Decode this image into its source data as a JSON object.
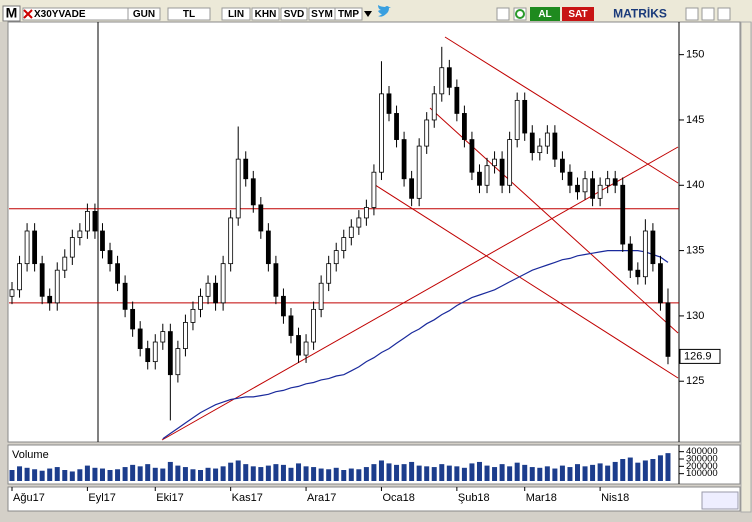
{
  "toolbar": {
    "menu": "M",
    "symbol": "X30YVADE",
    "buttons": [
      "GUN",
      "TL",
      "LIN",
      "KHN",
      "SVD",
      "SYM",
      "TMP"
    ],
    "buy": "AL",
    "sell": "SAT",
    "logo": "MATRİKS"
  },
  "chart_data": {
    "type": "candlestick",
    "categories": [
      "Ağu17",
      null,
      null,
      null,
      null,
      null,
      null,
      null,
      null,
      null,
      "Eyl17",
      null,
      null,
      null,
      null,
      null,
      null,
      null,
      null,
      "Eki17",
      null,
      null,
      null,
      null,
      null,
      null,
      null,
      null,
      null,
      "Kas17",
      null,
      null,
      null,
      null,
      null,
      null,
      null,
      null,
      null,
      "Ara17",
      null,
      null,
      null,
      null,
      null,
      null,
      null,
      null,
      null,
      "Oca18",
      null,
      null,
      null,
      null,
      null,
      null,
      null,
      null,
      null,
      "Şub18",
      null,
      null,
      null,
      null,
      null,
      null,
      null,
      null,
      "Mar18",
      null,
      null,
      null,
      null,
      null,
      null,
      null,
      null,
      null,
      "Nis18",
      null,
      null,
      null,
      null,
      null,
      null,
      null,
      null,
      null
    ],
    "open": [
      131.5,
      132,
      134,
      136.5,
      134,
      131.5,
      131,
      133.5,
      134.5,
      136,
      136.5,
      138,
      136.5,
      135,
      134,
      132.5,
      130.5,
      129,
      127.5,
      126.5,
      128,
      128.8,
      125.5,
      127.5,
      129.5,
      130.5,
      131.5,
      132.5,
      131,
      134,
      137.5,
      142,
      140.5,
      138.5,
      136.5,
      134,
      131.5,
      130,
      128.5,
      127,
      128,
      130.5,
      132.5,
      134,
      135,
      136,
      136.8,
      137.5,
      138.3,
      141,
      147,
      145.5,
      143.5,
      140.5,
      139,
      143,
      145,
      147,
      149,
      147.5,
      145.5,
      143.5,
      141,
      140,
      141.5,
      142,
      140,
      143.5,
      146.5,
      144,
      142.5,
      143,
      144,
      142,
      141,
      140,
      139.5,
      140.5,
      139,
      140,
      140.5,
      140,
      135.5,
      133.5,
      133,
      136.5,
      134,
      131
    ],
    "high": [
      132.6,
      134.6,
      137.1,
      137.1,
      134.6,
      132.1,
      134.1,
      135.1,
      136.6,
      137.1,
      138.6,
      138.6,
      137.1,
      135.6,
      134.6,
      133.1,
      131.1,
      129.6,
      128.1,
      128.6,
      129.4,
      129.4,
      128.1,
      130.1,
      131.1,
      132.1,
      133.1,
      133.1,
      134.6,
      138.1,
      144.5,
      142.6,
      141.1,
      139.1,
      137.1,
      134.6,
      132.1,
      130.6,
      129.1,
      128.6,
      131.1,
      133.1,
      134.6,
      135.6,
      136.6,
      137.4,
      138.1,
      138.9,
      141.6,
      149.5,
      147.6,
      146.1,
      144.1,
      141.1,
      143.6,
      145.6,
      147.6,
      150.6,
      149.6,
      148.1,
      146.1,
      144.1,
      141.6,
      142.1,
      142.6,
      142.6,
      144.1,
      147.1,
      147.1,
      144.6,
      143.6,
      144.6,
      144.6,
      142.6,
      141.6,
      140.6,
      141.1,
      141.1,
      140.6,
      141.1,
      141.1,
      140.6,
      136.1,
      134.1,
      137.4,
      137.1,
      134.6,
      132.1
    ],
    "low": [
      130.9,
      131.4,
      133.4,
      133.4,
      130.9,
      130.4,
      130.4,
      132.9,
      133.9,
      135.4,
      135.9,
      135.9,
      134.4,
      133.4,
      131.9,
      129.9,
      128.4,
      126.9,
      125.9,
      125.9,
      127.4,
      122,
      124.9,
      126.9,
      128.9,
      129.9,
      130.9,
      130.4,
      130.4,
      133.4,
      136.9,
      139.9,
      137.9,
      135.9,
      133.4,
      130.9,
      129.4,
      127.9,
      126.4,
      126.4,
      127.4,
      129.9,
      131.9,
      133.4,
      134.4,
      135.4,
      136.2,
      136.9,
      137.7,
      140.4,
      144.9,
      142.9,
      139.9,
      138.4,
      138.4,
      142.4,
      144.4,
      146.4,
      146.9,
      144.9,
      142.9,
      140.4,
      139.4,
      139.4,
      140.9,
      139.4,
      139.4,
      142.9,
      143.4,
      141.9,
      141.9,
      142.4,
      141.4,
      140.4,
      139.4,
      138.9,
      138.9,
      138.4,
      138.4,
      139.4,
      139.4,
      134.9,
      132.9,
      132.4,
      132.4,
      133.4,
      130.4,
      126.3
    ],
    "close": [
      132,
      134,
      136.5,
      134,
      131.5,
      131,
      133.5,
      134.5,
      136,
      136.5,
      138,
      136.5,
      135,
      134,
      132.5,
      130.5,
      129,
      127.5,
      126.5,
      128,
      128.8,
      125.5,
      127.5,
      129.5,
      130.5,
      131.5,
      132.5,
      131,
      134,
      137.5,
      142,
      140.5,
      138.5,
      136.5,
      134,
      131.5,
      130,
      128.5,
      127,
      128,
      130.5,
      132.5,
      134,
      135,
      136,
      136.8,
      137.5,
      138.3,
      141,
      147,
      145.5,
      143.5,
      140.5,
      139,
      143,
      145,
      147,
      149,
      147.5,
      145.5,
      143.5,
      141,
      140,
      141.5,
      142,
      140,
      143.5,
      146.5,
      144,
      142.5,
      143,
      144,
      142,
      141,
      140,
      139.5,
      140.5,
      139,
      140,
      140.5,
      140,
      135.5,
      133.5,
      133,
      136.5,
      134,
      131,
      126.9
    ],
    "moving_average": {
      "color": "#1a2a9c",
      "values": [
        null,
        null,
        null,
        null,
        null,
        null,
        null,
        null,
        null,
        null,
        null,
        null,
        null,
        null,
        null,
        null,
        null,
        null,
        null,
        null,
        120.6,
        121,
        121.4,
        121.8,
        122.2,
        122.6,
        122.9,
        123.2,
        123.4,
        123.6,
        123.7,
        123.8,
        123.8,
        123.9,
        124,
        124.2,
        124.3,
        124.5,
        124.6,
        124.8,
        124.9,
        125.1,
        125.2,
        125.4,
        125.5,
        125.8,
        126.1,
        126.5,
        126.8,
        127.2,
        127.5,
        127.9,
        128.3,
        128.7,
        129,
        129.4,
        129.7,
        130.1,
        130.4,
        130.8,
        131.1,
        131.4,
        131.6,
        131.8,
        132,
        132.3,
        132.6,
        132.9,
        133.2,
        133.5,
        133.7,
        133.9,
        134.1,
        134.3,
        134.4,
        134.6,
        134.7,
        134.8,
        134.9,
        135,
        135,
        135,
        135,
        135,
        134.9,
        134.7,
        134.5,
        134.1
      ]
    },
    "levels": [
      138.2,
      131
    ],
    "level_color": "#c00000",
    "last_price": 126.9,
    "ylim": [
      120.5,
      152.5
    ],
    "yticks": [
      125,
      130,
      135,
      140,
      145,
      150
    ],
    "volume": {
      "label": "Volume",
      "color": "#1c3d8c",
      "ylim": [
        0,
        450000
      ],
      "yticks": [
        100000,
        200000,
        300000,
        400000
      ],
      "values": [
        150000,
        200000,
        180000,
        160000,
        140000,
        170000,
        190000,
        150000,
        130000,
        160000,
        210000,
        180000,
        170000,
        150000,
        160000,
        190000,
        220000,
        200000,
        230000,
        180000,
        170000,
        260000,
        210000,
        190000,
        160000,
        150000,
        180000,
        170000,
        200000,
        250000,
        280000,
        230000,
        200000,
        190000,
        210000,
        230000,
        220000,
        180000,
        240000,
        200000,
        190000,
        170000,
        160000,
        180000,
        150000,
        170000,
        160000,
        190000,
        230000,
        280000,
        240000,
        220000,
        230000,
        260000,
        210000,
        200000,
        190000,
        230000,
        210000,
        200000,
        180000,
        240000,
        260000,
        210000,
        190000,
        230000,
        200000,
        250000,
        220000,
        190000,
        180000,
        200000,
        170000,
        210000,
        190000,
        230000,
        200000,
        220000,
        240000,
        210000,
        260000,
        300000,
        320000,
        250000,
        280000,
        300000,
        350000,
        380000
      ]
    }
  }
}
